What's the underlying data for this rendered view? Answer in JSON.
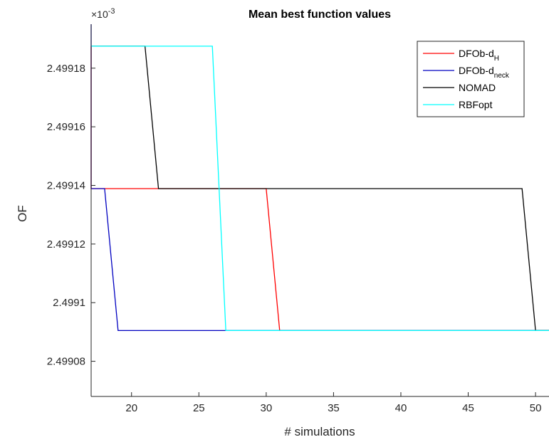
{
  "chart_data": {
    "type": "line",
    "title": "Mean best function values",
    "xlabel": "# simulations",
    "ylabel": "OF",
    "y_multiplier": "×10",
    "y_multiplier_exp": "-3",
    "xlim": [
      17,
      51
    ],
    "ylim": [
      2.499068,
      2.499195
    ],
    "x_ticks": [
      20,
      25,
      30,
      35,
      40,
      45,
      50
    ],
    "x_tick_labels": [
      "20",
      "25",
      "30",
      "35",
      "40",
      "45",
      "50"
    ],
    "y_ticks": [
      2.49908,
      2.4991,
      2.49912,
      2.49914,
      2.49916,
      2.49918
    ],
    "y_tick_labels": [
      "2.49908",
      "2.4991",
      "2.49912",
      "2.49914",
      "2.49916",
      "2.49918"
    ],
    "grid": false,
    "legend_position": "top-right",
    "series": [
      {
        "name": "DFOb-d",
        "name_sub": "H",
        "color": "#ff0000",
        "x": [
          17,
          17,
          30,
          31,
          51
        ],
        "y": [
          2.4991875,
          2.4991389,
          2.4991389,
          2.4990905,
          2.4990905
        ]
      },
      {
        "name": "DFOb-d",
        "name_sub": "neck",
        "color": "#0000c0",
        "x": [
          17,
          17,
          18,
          19,
          51
        ],
        "y": [
          2.499195,
          2.4991389,
          2.4991389,
          2.4990905,
          2.4990905
        ]
      },
      {
        "name": "NOMAD",
        "name_sub": "",
        "color": "#000000",
        "x": [
          17,
          21,
          22,
          49,
          50,
          51
        ],
        "y": [
          2.4991875,
          2.4991875,
          2.4991389,
          2.4991389,
          2.4990905,
          2.4990905
        ]
      },
      {
        "name": "RBFopt",
        "name_sub": "",
        "color": "#00ffff",
        "x": [
          17,
          26,
          27,
          51
        ],
        "y": [
          2.4991875,
          2.4991875,
          2.4990905,
          2.4990905
        ]
      }
    ]
  }
}
